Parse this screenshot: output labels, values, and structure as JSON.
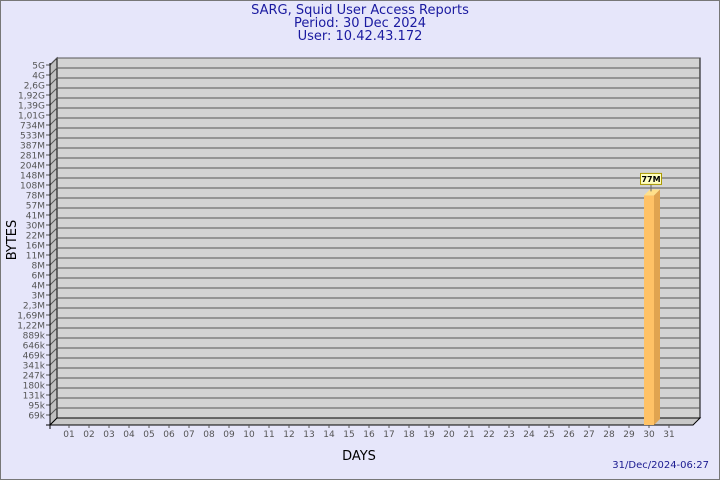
{
  "chart_data": {
    "type": "bar",
    "title": "SARG, Squid User Access Reports",
    "subtitle": [
      "Period: 30 Dec 2024",
      "User: 10.42.43.172"
    ],
    "xlabel": "DAYS",
    "ylabel": "BYTES",
    "y_scale": "log",
    "y_tick_labels": [
      "5G",
      "4G",
      "2,6G",
      "1,92G",
      "1,39G",
      "1,01G",
      "734M",
      "533M",
      "387M",
      "281M",
      "204M",
      "148M",
      "108M",
      "78M",
      "57M",
      "41M",
      "30M",
      "22M",
      "16M",
      "11M",
      "8M",
      "6M",
      "4M",
      "3M",
      "2,3M",
      "1,69M",
      "1,22M",
      "889k",
      "646k",
      "469k",
      "341k",
      "247k",
      "180k",
      "131k",
      "95k",
      "69k"
    ],
    "categories": [
      "01",
      "02",
      "03",
      "04",
      "05",
      "06",
      "07",
      "08",
      "09",
      "10",
      "11",
      "12",
      "13",
      "14",
      "15",
      "16",
      "17",
      "18",
      "19",
      "20",
      "21",
      "22",
      "23",
      "24",
      "25",
      "26",
      "27",
      "28",
      "29",
      "30",
      "31"
    ],
    "values": [
      {
        "day": "30",
        "value_bytes": 77000000,
        "label": "77M"
      }
    ],
    "grid": true,
    "colors": {
      "bar": "#ffc266",
      "bar_side": "#e0a450",
      "plot": "#d3d3d3",
      "background": "#e6e6fa",
      "title": "#1a1aa0",
      "label_box": "#ffffc0"
    }
  },
  "footer": {
    "timestamp": "31/Dec/2024-06:27"
  }
}
